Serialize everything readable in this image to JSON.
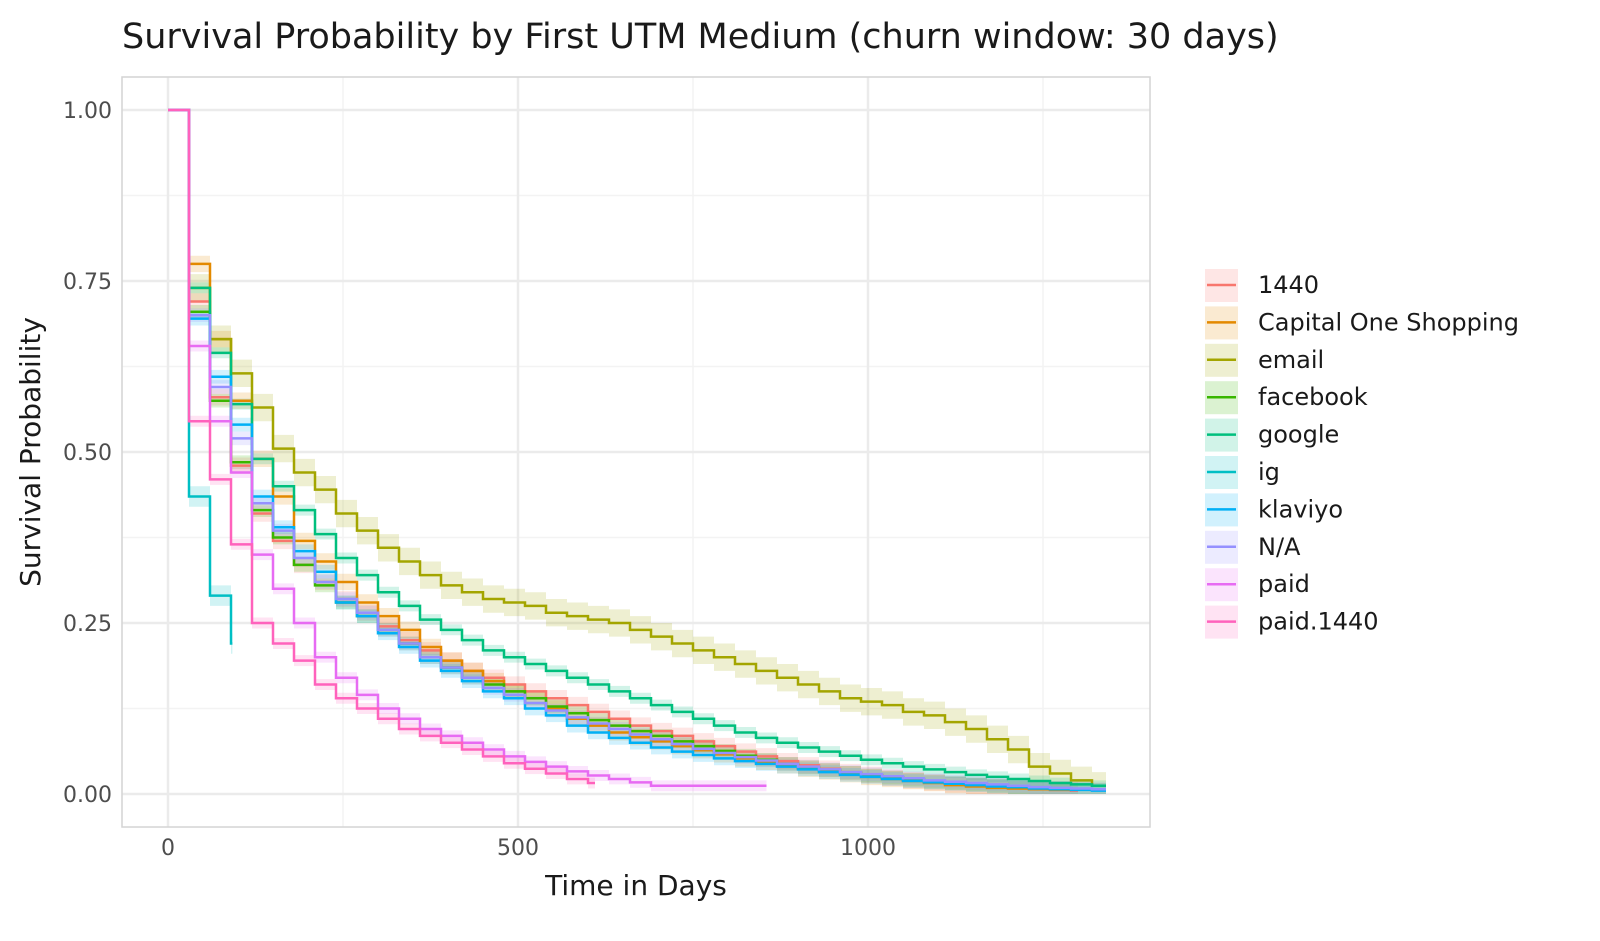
{
  "chart_data": {
    "type": "line",
    "subtype": "step survival curves with confidence bands",
    "title": "Survival Probability by First UTM Medium (churn window: 30 days)",
    "xlabel": "Time in Days",
    "ylabel": "Survival Probability",
    "xlim": [
      -70,
      1400
    ],
    "ylim": [
      -0.05,
      1.05
    ],
    "x_ticks": [
      0,
      500,
      1000
    ],
    "x_tick_labels": [
      "0",
      "500",
      "1000"
    ],
    "y_ticks": [
      0,
      0.25,
      0.5,
      0.75,
      1
    ],
    "y_tick_labels": [
      "0.00",
      "0.25",
      "0.50",
      "0.75",
      "1.00"
    ],
    "grid": true,
    "legend_position": "right",
    "step_times_days": [
      0,
      30,
      60,
      90,
      120,
      150,
      180,
      210,
      240,
      270,
      300,
      330,
      360,
      390,
      420,
      450,
      480,
      510,
      540,
      570,
      600,
      630,
      660,
      690,
      720,
      750,
      780,
      810,
      840,
      870,
      900,
      930,
      960,
      990,
      1020,
      1050,
      1080,
      1110,
      1140,
      1170,
      1200,
      1230,
      1260,
      1290,
      1320
    ],
    "series": [
      {
        "name": "1440",
        "color": "#F8766D",
        "end": 1300,
        "ci": 0.012,
        "values": [
          1,
          0.72,
          0.58,
          0.48,
          0.41,
          0.37,
          0.335,
          0.31,
          0.285,
          0.265,
          0.245,
          0.225,
          0.21,
          0.195,
          0.18,
          0.17,
          0.16,
          0.15,
          0.14,
          0.13,
          0.12,
          0.11,
          0.1,
          0.092,
          0.085,
          0.077,
          0.07,
          0.062,
          0.055,
          0.048,
          0.042,
          0.037,
          0.032,
          0.028,
          0.024,
          0.02,
          0.017,
          0.014,
          0.012,
          0.01,
          0.008,
          0.007,
          0.006,
          0.005
        ]
      },
      {
        "name": "Capital One Shopping",
        "color": "#E38900",
        "end": 1290,
        "ci": 0.012,
        "values": [
          1,
          0.775,
          0.665,
          0.575,
          0.49,
          0.435,
          0.37,
          0.34,
          0.31,
          0.28,
          0.26,
          0.24,
          0.215,
          0.195,
          0.18,
          0.165,
          0.15,
          0.14,
          0.125,
          0.11,
          0.1,
          0.09,
          0.083,
          0.077,
          0.07,
          0.064,
          0.058,
          0.052,
          0.047,
          0.042,
          0.037,
          0.033,
          0.029,
          0.025,
          0.022,
          0.019,
          0.016,
          0.013,
          0.011,
          0.009,
          0.008,
          0.007,
          0.006
        ]
      },
      {
        "name": "email",
        "color": "#A3A500",
        "end": 1340,
        "ci": 0.02,
        "values": [
          1,
          0.74,
          0.665,
          0.615,
          0.565,
          0.505,
          0.47,
          0.445,
          0.41,
          0.385,
          0.36,
          0.34,
          0.32,
          0.305,
          0.295,
          0.285,
          0.28,
          0.275,
          0.265,
          0.26,
          0.255,
          0.25,
          0.24,
          0.23,
          0.22,
          0.21,
          0.2,
          0.19,
          0.18,
          0.17,
          0.16,
          0.15,
          0.14,
          0.135,
          0.13,
          0.12,
          0.115,
          0.105,
          0.095,
          0.08,
          0.065,
          0.04,
          0.03,
          0.02,
          0.012
        ]
      },
      {
        "name": "facebook",
        "color": "#39B600",
        "end": 1340,
        "ci": 0.01,
        "values": [
          1,
          0.705,
          0.575,
          0.485,
          0.415,
          0.375,
          0.335,
          0.305,
          0.28,
          0.26,
          0.24,
          0.22,
          0.2,
          0.185,
          0.17,
          0.16,
          0.15,
          0.14,
          0.128,
          0.118,
          0.108,
          0.1,
          0.092,
          0.085,
          0.077,
          0.07,
          0.063,
          0.056,
          0.05,
          0.044,
          0.039,
          0.035,
          0.031,
          0.027,
          0.024,
          0.021,
          0.018,
          0.016,
          0.014,
          0.012,
          0.01,
          0.009,
          0.008,
          0.007,
          0.006
        ]
      },
      {
        "name": "google",
        "color": "#00BF7D",
        "end": 1340,
        "ci": 0.008,
        "values": [
          1,
          0.74,
          0.645,
          0.57,
          0.49,
          0.45,
          0.415,
          0.38,
          0.345,
          0.32,
          0.295,
          0.275,
          0.255,
          0.24,
          0.225,
          0.21,
          0.2,
          0.19,
          0.18,
          0.17,
          0.16,
          0.15,
          0.14,
          0.13,
          0.12,
          0.11,
          0.1,
          0.09,
          0.082,
          0.075,
          0.068,
          0.062,
          0.056,
          0.05,
          0.045,
          0.04,
          0.036,
          0.032,
          0.028,
          0.025,
          0.022,
          0.019,
          0.016,
          0.014,
          0.012
        ]
      },
      {
        "name": "ig",
        "color": "#00BFC4",
        "end": 92,
        "ci": 0.015,
        "values": [
          1,
          0.435,
          0.29,
          0.22
        ]
      },
      {
        "name": "klaviyo",
        "color": "#00B0F6",
        "end": 1340,
        "ci": 0.01,
        "values": [
          1,
          0.695,
          0.61,
          0.54,
          0.435,
          0.39,
          0.355,
          0.325,
          0.28,
          0.26,
          0.235,
          0.215,
          0.195,
          0.18,
          0.165,
          0.15,
          0.14,
          0.125,
          0.115,
          0.1,
          0.09,
          0.082,
          0.075,
          0.068,
          0.062,
          0.057,
          0.052,
          0.048,
          0.044,
          0.04,
          0.036,
          0.032,
          0.028,
          0.025,
          0.022,
          0.019,
          0.017,
          0.015,
          0.013,
          0.011,
          0.01,
          0.008,
          0.007,
          0.006,
          0.005
        ]
      },
      {
        "name": "N/A",
        "color": "#9590FF",
        "end": 1340,
        "ci": 0.01,
        "values": [
          1,
          0.7,
          0.595,
          0.52,
          0.425,
          0.385,
          0.345,
          0.31,
          0.285,
          0.265,
          0.24,
          0.22,
          0.2,
          0.185,
          0.17,
          0.155,
          0.145,
          0.133,
          0.122,
          0.112,
          0.103,
          0.095,
          0.087,
          0.08,
          0.073,
          0.066,
          0.06,
          0.054,
          0.049,
          0.044,
          0.04,
          0.036,
          0.032,
          0.029,
          0.026,
          0.023,
          0.02,
          0.018,
          0.016,
          0.014,
          0.012,
          0.01,
          0.009,
          0.008,
          0.007
        ]
      },
      {
        "name": "paid",
        "color": "#E76BF3",
        "end": 855,
        "ci": 0.008,
        "values": [
          1,
          0.655,
          0.545,
          0.47,
          0.35,
          0.3,
          0.25,
          0.2,
          0.17,
          0.145,
          0.125,
          0.11,
          0.095,
          0.085,
          0.075,
          0.065,
          0.055,
          0.047,
          0.04,
          0.033,
          0.027,
          0.022,
          0.017,
          0.012
        ]
      },
      {
        "name": "paid.1440",
        "color": "#FF62BC",
        "end": 610,
        "ci": 0.008,
        "values": [
          1,
          0.545,
          0.46,
          0.365,
          0.25,
          0.22,
          0.195,
          0.16,
          0.14,
          0.125,
          0.11,
          0.095,
          0.085,
          0.075,
          0.065,
          0.055,
          0.045,
          0.037,
          0.03,
          0.022,
          0.016
        ]
      }
    ]
  }
}
